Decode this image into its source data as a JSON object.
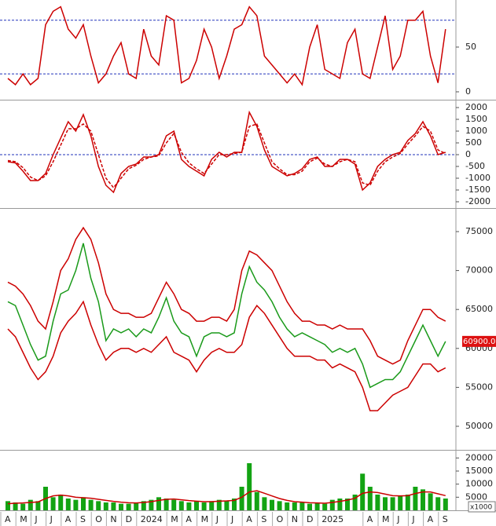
{
  "chart_data": [
    {
      "type": "line",
      "ylim": [
        -8.8,
        102.6
      ],
      "yticks": [
        0,
        50
      ],
      "hlines": [
        20,
        80
      ],
      "series": [
        {
          "color": "#cc0000",
          "values": [
            15,
            8,
            20,
            8,
            15,
            75,
            90,
            95,
            70,
            60,
            75,
            40,
            10,
            20,
            40,
            55,
            20,
            15,
            70,
            40,
            30,
            85,
            80,
            10,
            15,
            35,
            70,
            50,
            15,
            40,
            70,
            75,
            95,
            85,
            40,
            30,
            20,
            10,
            20,
            8,
            50,
            75,
            25,
            20,
            15,
            55,
            70,
            20,
            15,
            50,
            85,
            25,
            40,
            80,
            80,
            90,
            40,
            10,
            70
          ]
        }
      ]
    },
    {
      "type": "line",
      "ylim": [
        -2267,
        2300
      ],
      "yticks": [
        -2000,
        -1500,
        -1000,
        -500,
        0,
        500,
        1000,
        1500,
        2000
      ],
      "hlines": [
        0
      ],
      "series": [
        {
          "color": "#cc0000",
          "values": [
            -300,
            -350,
            -700,
            -1100,
            -1100,
            -800,
            0,
            700,
            1400,
            1000,
            1700,
            800,
            -500,
            -1300,
            -1600,
            -800,
            -500,
            -400,
            -100,
            -100,
            0,
            800,
            1000,
            -200,
            -500,
            -700,
            -900,
            -200,
            100,
            -100,
            100,
            100,
            1800,
            1200,
            200,
            -500,
            -700,
            -900,
            -800,
            -600,
            -200,
            -100,
            -500,
            -500,
            -200,
            -200,
            -400,
            -1500,
            -1200,
            -500,
            -200,
            0,
            100,
            600,
            900,
            1400,
            800,
            0,
            100
          ]
        },
        {
          "color": "#cc0000",
          "dash": true,
          "values": [
            -250,
            -300,
            -550,
            -950,
            -1100,
            -900,
            -300,
            400,
            1100,
            1100,
            1300,
            1000,
            0,
            -1000,
            -1400,
            -1000,
            -600,
            -450,
            -200,
            -100,
            -50,
            500,
            900,
            100,
            -350,
            -600,
            -800,
            -400,
            0,
            0,
            50,
            100,
            1200,
            1300,
            500,
            -300,
            -600,
            -850,
            -850,
            -700,
            -300,
            -150,
            -400,
            -500,
            -300,
            -200,
            -300,
            -1200,
            -1300,
            -700,
            -300,
            -100,
            50,
            450,
            800,
            1200,
            1000,
            200,
            50
          ]
        }
      ]
    },
    {
      "type": "line",
      "ylim": [
        46976,
        77923
      ],
      "yticks": [
        50000,
        55000,
        60000,
        65000,
        70000,
        75000
      ],
      "price_label": "60900.00",
      "series": [
        {
          "color": "#cc0000",
          "values": [
            68500,
            68000,
            67000,
            65500,
            63500,
            62500,
            66000,
            70000,
            71500,
            74000,
            75500,
            74000,
            71000,
            67000,
            65000,
            64500,
            64500,
            64000,
            64000,
            64500,
            66500,
            68500,
            67000,
            65000,
            64500,
            63500,
            63500,
            64000,
            64000,
            63500,
            65000,
            70000,
            72500,
            72000,
            71000,
            70000,
            68000,
            66000,
            64500,
            63500,
            63500,
            63000,
            63000,
            62500,
            63000,
            62500,
            62500,
            62500,
            61000,
            59000,
            58500,
            58000,
            58500,
            61000,
            63000,
            65000,
            65000,
            64000,
            63500
          ]
        },
        {
          "color": "#cc0000",
          "values": [
            62500,
            61500,
            59500,
            57500,
            56000,
            57000,
            59000,
            62000,
            63500,
            64500,
            66000,
            63000,
            60500,
            58500,
            59500,
            60000,
            60000,
            59500,
            60000,
            59500,
            60500,
            61500,
            59500,
            59000,
            58500,
            57000,
            58500,
            59500,
            60000,
            59500,
            59500,
            60500,
            64000,
            65500,
            64500,
            63000,
            61500,
            60000,
            59000,
            59000,
            59000,
            58500,
            58500,
            57500,
            58000,
            57500,
            57000,
            55000,
            52000,
            52000,
            53000,
            54000,
            54500,
            55000,
            56500,
            58000,
            58000,
            57000,
            57500
          ]
        },
        {
          "color": "#1a9a1a",
          "values": [
            66000,
            65500,
            63000,
            60500,
            58500,
            59000,
            63500,
            67000,
            67500,
            70000,
            73500,
            69000,
            66000,
            61000,
            62500,
            62000,
            62500,
            61500,
            62500,
            62000,
            64000,
            66500,
            63500,
            62000,
            61500,
            59000,
            61500,
            62000,
            62000,
            61500,
            62000,
            67000,
            70500,
            68500,
            67500,
            66000,
            64000,
            62500,
            61500,
            62000,
            61500,
            61000,
            60500,
            59500,
            60000,
            59500,
            60000,
            58000,
            55000,
            55500,
            56000,
            56000,
            57000,
            59000,
            61000,
            63000,
            61000,
            59000,
            60900
          ]
        }
      ]
    },
    {
      "type": "bar",
      "ylim": [
        0,
        22800
      ],
      "yticks": [
        5000,
        10000,
        15000,
        20000
      ],
      "unit_label": "x1000",
      "categories": [
        "A",
        null,
        "M",
        null,
        "J",
        null,
        "J",
        null,
        "A",
        null,
        "S",
        null,
        "O",
        null,
        "N",
        null,
        "D",
        null,
        "2024",
        null,
        null,
        null,
        "M",
        null,
        "A",
        null,
        "M",
        null,
        "J",
        null,
        "J",
        null,
        "A",
        null,
        "S",
        null,
        "O",
        null,
        "N",
        null,
        "D",
        null,
        "2025",
        null,
        null,
        null,
        null,
        null,
        "A",
        null,
        "M",
        null,
        "J",
        null,
        "J",
        null,
        "A",
        null,
        "S"
      ],
      "series": [
        {
          "color": "#13a313",
          "style": "bar",
          "values": [
            3500,
            3000,
            2500,
            4000,
            3500,
            9000,
            5000,
            6000,
            4500,
            4000,
            5000,
            4000,
            3500,
            3000,
            3000,
            2500,
            2500,
            3000,
            3500,
            4000,
            5000,
            4500,
            4000,
            3500,
            3000,
            3500,
            3000,
            3500,
            4000,
            3500,
            4500,
            9000,
            18000,
            7000,
            5000,
            4000,
            3500,
            3000,
            3000,
            3000,
            2500,
            3000,
            2500,
            4000,
            4500,
            4500,
            6000,
            14000,
            9000,
            6000,
            5000,
            5000,
            5500,
            6000,
            9000,
            8000,
            6500,
            5000,
            4500
          ]
        },
        {
          "color": "#cc0000",
          "style": "line",
          "values": [
            2500,
            2700,
            2800,
            3000,
            3200,
            4500,
            5500,
            5800,
            5500,
            5000,
            4800,
            4600,
            4200,
            3800,
            3400,
            3100,
            2900,
            2800,
            3000,
            3300,
            3800,
            4200,
            4300,
            4000,
            3700,
            3500,
            3300,
            3300,
            3500,
            3600,
            3800,
            5000,
            7000,
            7500,
            6500,
            5500,
            4500,
            3800,
            3300,
            3100,
            2900,
            2800,
            2700,
            3000,
            3400,
            3900,
            4600,
            6500,
            7000,
            6800,
            6200,
            5600,
            5500,
            5600,
            6400,
            7000,
            7000,
            6300,
            5600
          ]
        }
      ]
    }
  ]
}
